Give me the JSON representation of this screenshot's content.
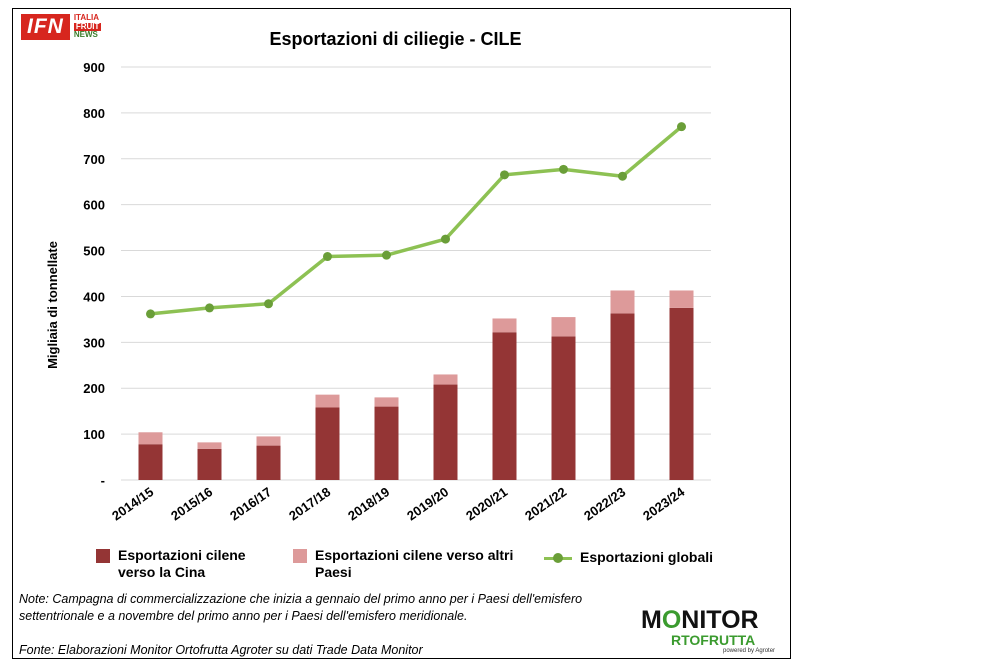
{
  "logos": {
    "ifn": {
      "box": "IFN",
      "line1": "ITALIA",
      "line2": "FRUIT",
      "line3": "NEWS"
    },
    "monitor": {
      "line1_pre": "M",
      "line1_o": "O",
      "line1_post": "NITOR",
      "line2": "RTOFRUTTA",
      "tagline": "powered by Agroter"
    }
  },
  "colors": {
    "china": "#943535",
    "other": "#dd9a9a",
    "global": "#8dc153",
    "global_marker": "#6a9e38",
    "grid": "#d9d9d9"
  },
  "chart_data": {
    "type": "bar",
    "title": "Esportazioni di ciliegie - CILE",
    "ylabel": "Migliaia di tonnellate",
    "xlabel": "",
    "ylim": [
      0,
      900
    ],
    "yticks": [
      0,
      100,
      200,
      300,
      400,
      500,
      600,
      700,
      800,
      900
    ],
    "ytick_labels": [
      "-",
      "100",
      "200",
      "300",
      "400",
      "500",
      "600",
      "700",
      "800",
      "900"
    ],
    "grid": true,
    "legend_position": "bottom",
    "stacked": true,
    "categories": [
      "2014/15",
      "2015/16",
      "2016/17",
      "2017/18",
      "2018/19",
      "2019/20",
      "2020/21",
      "2021/22",
      "2022/23",
      "2023/24"
    ],
    "series": [
      {
        "name": "Esportazioni cilene verso la Cina",
        "type": "bar",
        "values": [
          78,
          68,
          75,
          158,
          160,
          208,
          322,
          313,
          363,
          375
        ]
      },
      {
        "name": "Esportazioni cilene verso altri Paesi",
        "type": "bar",
        "values": [
          26,
          14,
          20,
          28,
          20,
          22,
          30,
          42,
          50,
          38
        ]
      },
      {
        "name": "Esportazioni globali",
        "type": "line",
        "values": [
          362,
          375,
          384,
          487,
          490,
          525,
          665,
          677,
          662,
          770
        ]
      }
    ]
  },
  "legend": {
    "china_line1": "Esportazioni cilene",
    "china_line2": "verso la Cina",
    "other_line1": "Esportazioni cilene verso altri",
    "other_line2": "Paesi",
    "global": "Esportazioni globali"
  },
  "note": "Note: Campagna di commercializzazione che inizia a gennaio del primo anno per i Paesi dell'emisfero settentrionale e a novembre del primo anno per i Paesi dell'emisfero meridionale.",
  "source": "Fonte: Elaborazioni Monitor Ortofrutta Agroter su dati Trade Data Monitor"
}
